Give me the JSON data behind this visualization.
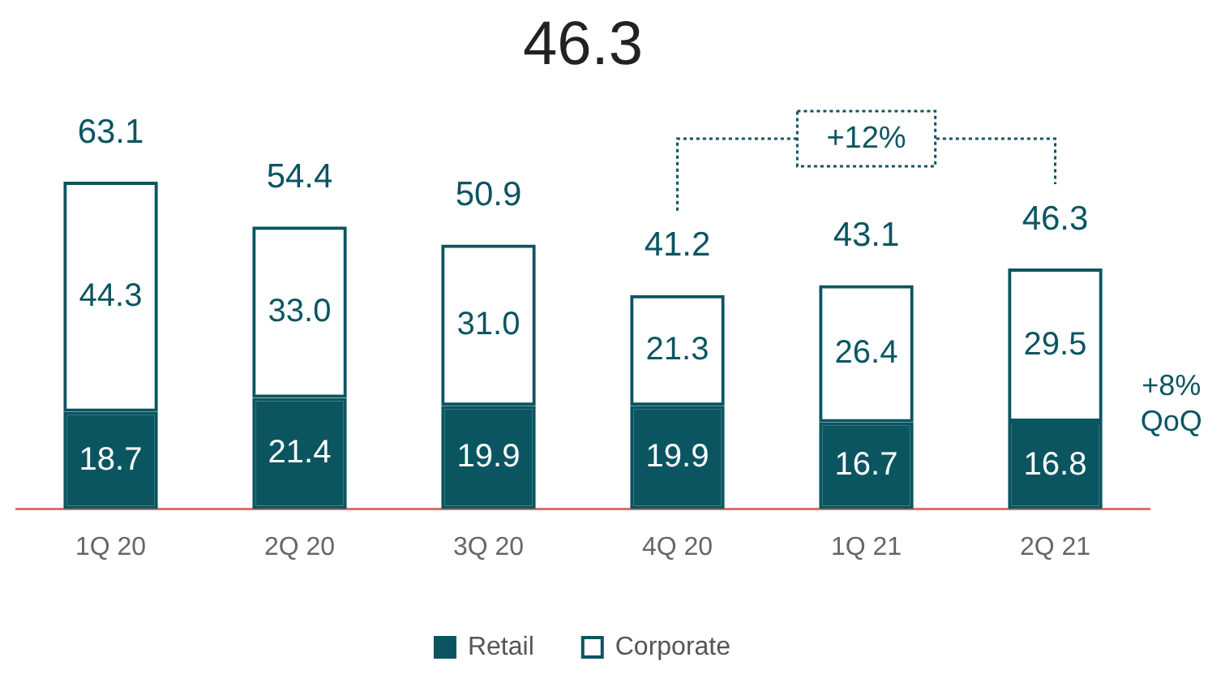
{
  "chart_data": {
    "type": "bar",
    "title": "46.3",
    "categories": [
      "1Q 20",
      "2Q 20",
      "3Q 20",
      "4Q 20",
      "1Q 21",
      "2Q 21"
    ],
    "stacked": true,
    "tick_labels": "x",
    "series": [
      {
        "name": "Retail",
        "color": "#0b5561",
        "values": [
          18.7,
          21.4,
          19.9,
          19.9,
          16.7,
          16.8
        ],
        "value_labels": [
          "18.7",
          "21.4",
          "19.9",
          "19.9",
          "16.7",
          "16.8"
        ]
      },
      {
        "name": "Corporate",
        "color": "#0b5561",
        "values": [
          44.3,
          33.0,
          31.0,
          21.3,
          26.4,
          29.5
        ],
        "value_labels": [
          "44.3",
          "33.0",
          "31.0",
          "21.3",
          "26.4",
          "29.5"
        ]
      }
    ],
    "totals": [
      "63.1",
      "54.4",
      "50.9",
      "41.2",
      "43.1",
      "46.3"
    ],
    "annotations": [
      "+12%",
      "+8%\nQoQ"
    ],
    "legend": "bottom"
  }
}
